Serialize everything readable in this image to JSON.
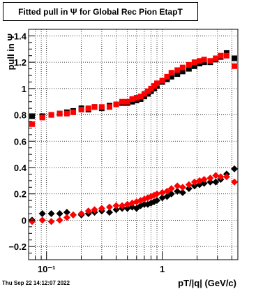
{
  "chart_data": {
    "type": "scatter",
    "title": "Fitted pull in  Ψ  for Global Rec Pion EtapT",
    "xlabel": "pT/|q| (GeV/c)",
    "ylabel": "pull in  Ψ",
    "x_scale": "log",
    "xlim": [
      0.07,
      4.5
    ],
    "ylim": [
      -0.3,
      1.45
    ],
    "grid": true,
    "x_ticks": [
      {
        "value": 0.1,
        "label": "10⁻¹"
      },
      {
        "value": 1,
        "label": "1"
      }
    ],
    "y_ticks": [
      -0.2,
      0,
      0.2,
      0.4,
      0.6,
      0.8,
      1,
      1.2,
      1.4
    ],
    "y_tick_labels": [
      "−0.2",
      "0",
      "0.2",
      "0.4",
      "0.6",
      "0.8",
      "1",
      "1.2",
      "1.4"
    ],
    "series": [
      {
        "color": "#000000",
        "marker": "square",
        "x": [
          0.075,
          0.092,
          0.11,
          0.13,
          0.15,
          0.17,
          0.2,
          0.23,
          0.26,
          0.3,
          0.35,
          0.4,
          0.45,
          0.5,
          0.55,
          0.6,
          0.65,
          0.7,
          0.75,
          0.8,
          0.85,
          0.9,
          1.0,
          1.1,
          1.2,
          1.35,
          1.5,
          1.7,
          1.9,
          2.1,
          2.3,
          2.6,
          2.9,
          3.2,
          3.6,
          4.2
        ],
        "y": [
          0.79,
          0.79,
          0.8,
          0.81,
          0.82,
          0.83,
          0.85,
          0.84,
          0.86,
          0.85,
          0.87,
          0.88,
          0.89,
          0.89,
          0.9,
          0.91,
          0.92,
          0.94,
          0.96,
          0.98,
          1.0,
          1.02,
          1.05,
          1.07,
          1.09,
          1.11,
          1.13,
          1.15,
          1.17,
          1.19,
          1.2,
          1.2,
          1.22,
          1.24,
          1.27,
          1.23
        ]
      },
      {
        "color": "#ff0000",
        "marker": "square",
        "x": [
          0.075,
          0.092,
          0.11,
          0.13,
          0.15,
          0.17,
          0.2,
          0.23,
          0.26,
          0.3,
          0.35,
          0.4,
          0.45,
          0.5,
          0.55,
          0.6,
          0.65,
          0.7,
          0.75,
          0.8,
          0.85,
          0.9,
          1.0,
          1.1,
          1.2,
          1.35,
          1.5,
          1.7,
          1.9,
          2.1,
          2.3,
          2.6,
          2.9,
          3.2,
          3.6,
          4.2
        ],
        "y": [
          0.73,
          0.78,
          0.8,
          0.81,
          0.81,
          0.82,
          0.84,
          0.85,
          0.86,
          0.86,
          0.86,
          0.88,
          0.9,
          0.9,
          0.92,
          0.93,
          0.94,
          0.96,
          0.98,
          1.0,
          1.02,
          1.04,
          1.06,
          1.09,
          1.12,
          1.14,
          1.16,
          1.18,
          1.2,
          1.21,
          1.22,
          1.21,
          1.23,
          1.25,
          1.25,
          1.17
        ]
      },
      {
        "color": "#000000",
        "marker": "diamond",
        "x": [
          0.075,
          0.092,
          0.11,
          0.13,
          0.15,
          0.17,
          0.2,
          0.23,
          0.26,
          0.3,
          0.35,
          0.4,
          0.45,
          0.5,
          0.55,
          0.6,
          0.65,
          0.7,
          0.75,
          0.8,
          0.85,
          0.9,
          1.0,
          1.1,
          1.2,
          1.35,
          1.5,
          1.7,
          1.9,
          2.1,
          2.3,
          2.6,
          2.9,
          3.2,
          3.6,
          4.2
        ],
        "y": [
          0.0,
          0.05,
          0.05,
          0.05,
          0.06,
          0.04,
          0.04,
          0.05,
          0.06,
          0.07,
          0.06,
          0.08,
          0.09,
          0.09,
          0.1,
          0.09,
          0.11,
          0.12,
          0.12,
          0.13,
          0.14,
          0.15,
          0.17,
          0.18,
          0.2,
          0.22,
          0.21,
          0.24,
          0.26,
          0.27,
          0.28,
          0.29,
          0.29,
          0.31,
          0.35,
          0.39
        ]
      },
      {
        "color": "#ff0000",
        "marker": "diamond",
        "x": [
          0.075,
          0.092,
          0.11,
          0.13,
          0.15,
          0.17,
          0.2,
          0.23,
          0.26,
          0.3,
          0.35,
          0.4,
          0.45,
          0.5,
          0.55,
          0.6,
          0.65,
          0.7,
          0.75,
          0.8,
          0.85,
          0.9,
          1.0,
          1.1,
          1.2,
          1.35,
          1.5,
          1.7,
          1.9,
          2.1,
          2.3,
          2.6,
          2.9,
          3.2,
          3.6,
          4.2
        ],
        "y": [
          -0.01,
          0.0,
          -0.01,
          0.0,
          0.02,
          0.04,
          0.05,
          0.07,
          0.08,
          0.09,
          0.1,
          0.11,
          0.11,
          0.12,
          0.13,
          0.14,
          0.15,
          0.16,
          0.17,
          0.18,
          0.19,
          0.2,
          0.21,
          0.22,
          0.24,
          0.26,
          0.25,
          0.27,
          0.29,
          0.3,
          0.31,
          0.32,
          0.34,
          0.33,
          0.33,
          0.29
        ]
      }
    ]
  },
  "timestamp": "Thu Sep 22 14:12:07 2022"
}
